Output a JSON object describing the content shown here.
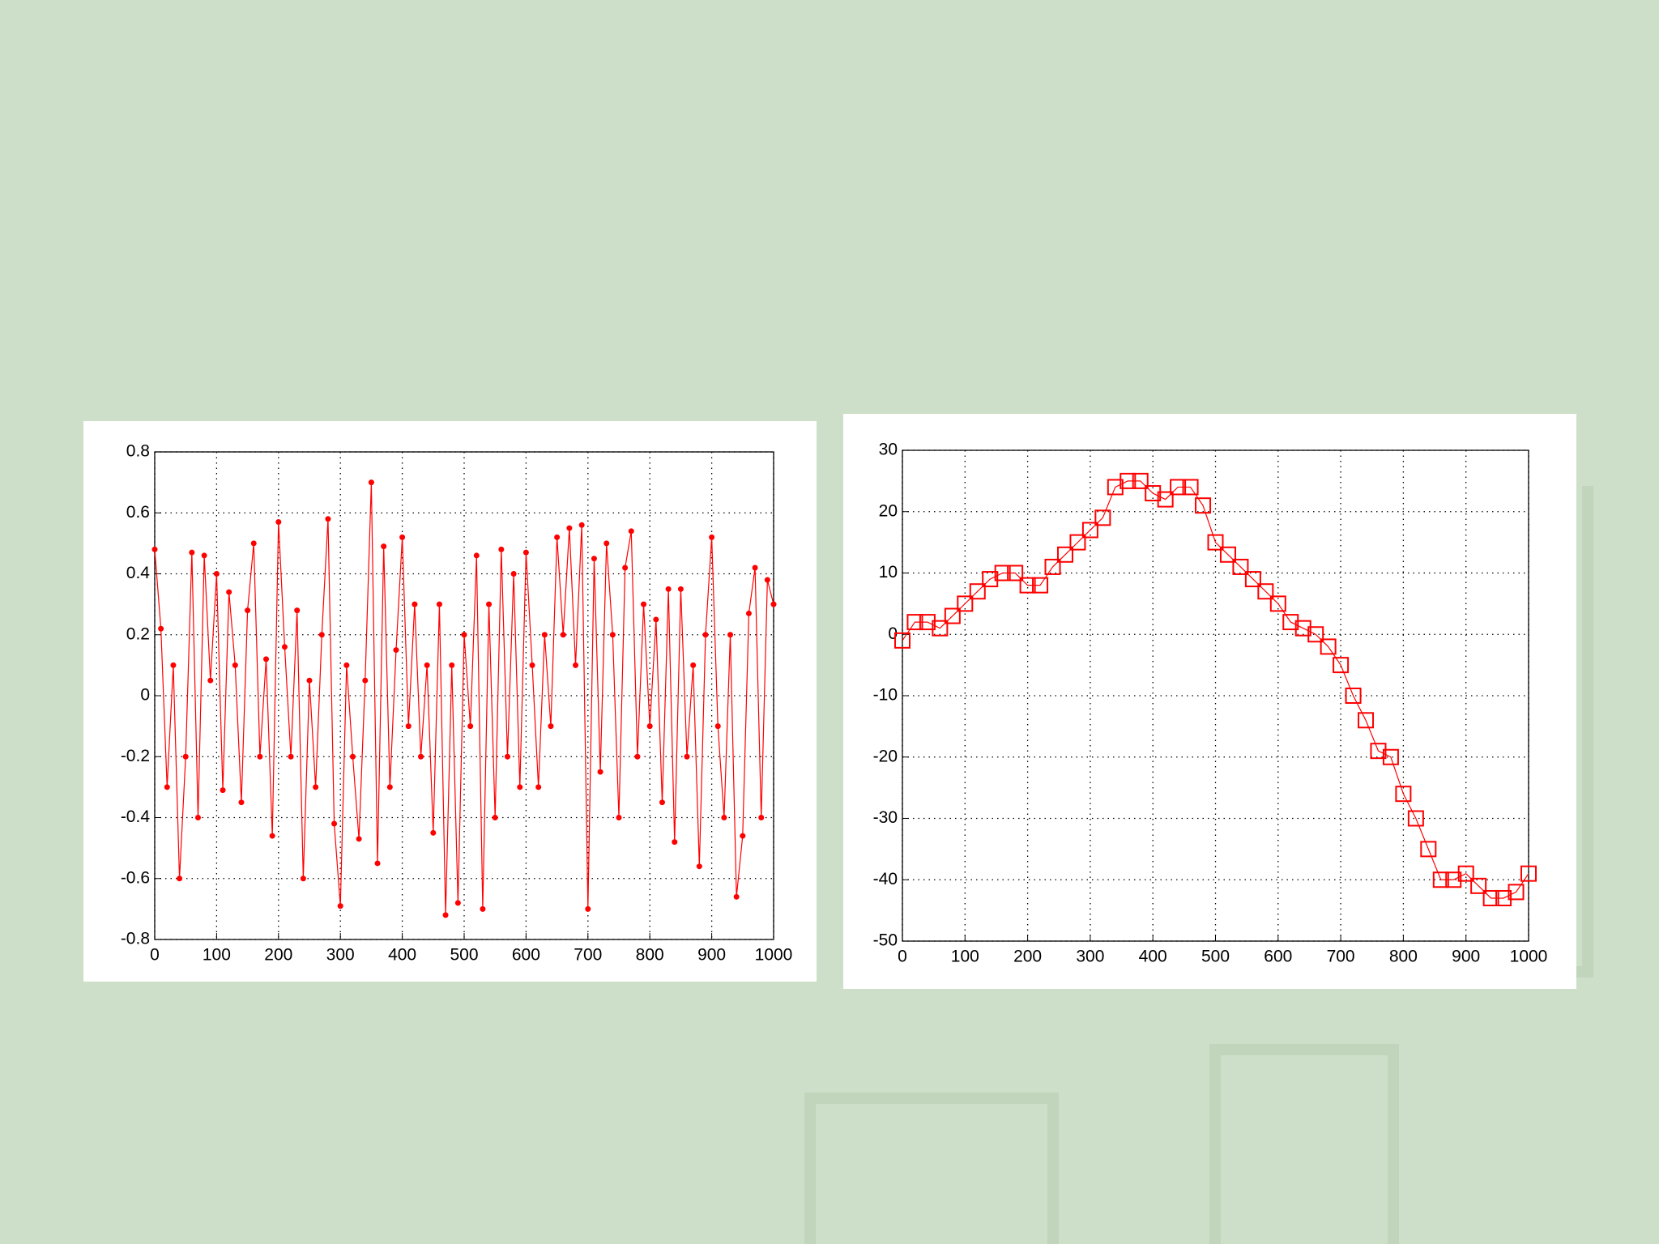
{
  "chart_data": [
    {
      "type": "line",
      "marker": "circle",
      "color": "#ff0000",
      "grid": true,
      "x": [
        0,
        10,
        20,
        30,
        40,
        50,
        60,
        70,
        80,
        90,
        100,
        110,
        120,
        130,
        140,
        150,
        160,
        170,
        180,
        190,
        200,
        210,
        220,
        230,
        240,
        250,
        260,
        270,
        280,
        290,
        300,
        310,
        320,
        330,
        340,
        350,
        360,
        370,
        380,
        390,
        400,
        410,
        420,
        430,
        440,
        450,
        460,
        470,
        480,
        490,
        500,
        510,
        520,
        530,
        540,
        550,
        560,
        570,
        580,
        590,
        600,
        610,
        620,
        630,
        640,
        650,
        660,
        670,
        680,
        690,
        700,
        710,
        720,
        730,
        740,
        750,
        760,
        770,
        780,
        790,
        800,
        810,
        820,
        830,
        840,
        850,
        860,
        870,
        880,
        890,
        900,
        910,
        920,
        930,
        940,
        950,
        960,
        970,
        980,
        990,
        1000
      ],
      "values": [
        0.48,
        0.22,
        -0.3,
        0.1,
        -0.6,
        -0.2,
        0.47,
        -0.4,
        0.46,
        0.05,
        0.4,
        -0.31,
        0.34,
        0.1,
        -0.35,
        0.28,
        0.5,
        -0.2,
        0.12,
        -0.46,
        0.57,
        0.16,
        -0.2,
        0.28,
        -0.6,
        0.05,
        -0.3,
        0.2,
        0.58,
        -0.42,
        -0.69,
        0.1,
        -0.2,
        -0.47,
        0.05,
        0.7,
        -0.55,
        0.49,
        -0.3,
        0.15,
        0.52,
        -0.1,
        0.3,
        -0.2,
        0.1,
        -0.45,
        0.3,
        -0.72,
        0.1,
        -0.68,
        0.2,
        -0.1,
        0.46,
        -0.7,
        0.3,
        -0.4,
        0.48,
        -0.2,
        0.4,
        -0.3,
        0.47,
        0.1,
        -0.3,
        0.2,
        -0.1,
        0.52,
        0.2,
        0.55,
        0.1,
        0.56,
        -0.7,
        0.45,
        -0.25,
        0.5,
        0.2,
        -0.4,
        0.42,
        0.54,
        -0.2,
        0.3,
        -0.1,
        0.25,
        -0.35,
        0.35,
        -0.48,
        0.35,
        -0.2,
        0.1,
        -0.56,
        0.2,
        0.52,
        -0.1,
        -0.4,
        0.2,
        -0.66,
        -0.46,
        0.27,
        0.42,
        -0.4,
        0.38,
        0.3
      ],
      "xlim": [
        0,
        1000
      ],
      "xticks": [
        0,
        100,
        200,
        300,
        400,
        500,
        600,
        700,
        800,
        900,
        1000
      ],
      "ylim": [
        -0.8,
        0.8
      ],
      "yticks": [
        -0.8,
        -0.6,
        -0.4,
        -0.2,
        0,
        0.2,
        0.4,
        0.6,
        0.8
      ]
    },
    {
      "type": "line",
      "marker": "square",
      "color": "#ff0000",
      "grid": true,
      "x": [
        0,
        20,
        40,
        60,
        80,
        100,
        120,
        140,
        160,
        180,
        200,
        220,
        240,
        260,
        280,
        300,
        320,
        340,
        360,
        380,
        400,
        420,
        440,
        460,
        480,
        500,
        520,
        540,
        560,
        580,
        600,
        620,
        640,
        660,
        680,
        700,
        720,
        740,
        760,
        780,
        800,
        820,
        840,
        860,
        880,
        900,
        920,
        940,
        960,
        980,
        1000
      ],
      "values": [
        -1,
        2,
        2,
        1,
        3,
        5,
        7,
        9,
        10,
        10,
        8,
        8,
        11,
        13,
        15,
        17,
        19,
        24,
        25,
        25,
        23,
        22,
        24,
        24,
        21,
        15,
        13,
        11,
        9,
        7,
        5,
        2,
        1,
        0,
        -2,
        -5,
        -10,
        -14,
        -19,
        -20,
        -26,
        -30,
        -35,
        -40,
        -40,
        -39,
        -41,
        -43,
        -43,
        -42,
        -39
      ],
      "xlim": [
        0,
        1000
      ],
      "xticks": [
        0,
        100,
        200,
        300,
        400,
        500,
        600,
        700,
        800,
        900,
        1000
      ],
      "ylim": [
        -50,
        30
      ],
      "yticks": [
        -50,
        -40,
        -30,
        -20,
        -10,
        0,
        10,
        20,
        30
      ]
    }
  ]
}
